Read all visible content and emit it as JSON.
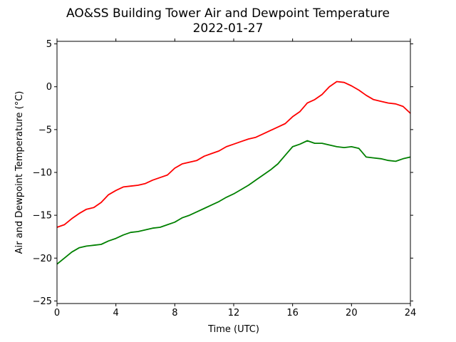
{
  "chart_data": {
    "type": "line",
    "title": "AO&SS Building Tower Air and Dewpoint Temperature",
    "subtitle": "2022-01-27",
    "xlabel": "Time (UTC)",
    "ylabel": "Air and Dewpoint Temperature (°C)",
    "xlim": [
      0,
      24
    ],
    "ylim": [
      -25.3,
      5.3
    ],
    "xticks": [
      0,
      4,
      8,
      12,
      16,
      20,
      24
    ],
    "yticks": [
      -25,
      -20,
      -15,
      -10,
      -5,
      0,
      5
    ],
    "grid": false,
    "legend": "none",
    "series": [
      {
        "color": "#ff0000",
        "x": [
          0,
          0.5,
          1,
          1.5,
          2,
          2.5,
          3,
          3.5,
          4,
          4.5,
          5,
          5.5,
          6,
          6.5,
          7,
          7.5,
          8,
          8.5,
          9,
          9.5,
          10,
          10.5,
          11,
          11.5,
          12,
          12.5,
          13,
          13.5,
          14,
          14.5,
          15,
          15.5,
          16,
          16.5,
          17,
          17.5,
          18,
          18.5,
          19,
          19.5,
          20,
          20.5,
          21,
          21.5,
          22,
          22.5,
          23,
          23.5,
          24
        ],
        "y": [
          -16.4,
          -16.1,
          -15.4,
          -14.8,
          -14.3,
          -14.1,
          -13.5,
          -12.6,
          -12.1,
          -11.7,
          -11.6,
          -11.5,
          -11.3,
          -10.9,
          -10.6,
          -10.3,
          -9.5,
          -9.0,
          -8.8,
          -8.6,
          -8.1,
          -7.8,
          -7.5,
          -7.0,
          -6.7,
          -6.4,
          -6.1,
          -5.9,
          -5.5,
          -5.1,
          -4.7,
          -4.3,
          -3.5,
          -2.9,
          -1.9,
          -1.5,
          -0.9,
          0.0,
          0.6,
          0.5,
          0.1,
          -0.4,
          -1.0,
          -1.5,
          -1.7,
          -1.9,
          -2.0,
          -2.3,
          -3.1
        ]
      },
      {
        "color": "#008000",
        "x": [
          0,
          0.5,
          1,
          1.5,
          2,
          2.5,
          3,
          3.5,
          4,
          4.5,
          5,
          5.5,
          6,
          6.5,
          7,
          7.5,
          8,
          8.5,
          9,
          9.5,
          10,
          10.5,
          11,
          11.5,
          12,
          12.5,
          13,
          13.5,
          14,
          14.5,
          15,
          15.5,
          16,
          16.5,
          17,
          17.5,
          18,
          18.5,
          19,
          19.5,
          20,
          20.5,
          21,
          21.5,
          22,
          22.5,
          23,
          23.5,
          24
        ],
        "y": [
          -20.7,
          -20.0,
          -19.3,
          -18.8,
          -18.6,
          -18.5,
          -18.4,
          -18.0,
          -17.7,
          -17.3,
          -17.0,
          -16.9,
          -16.7,
          -16.5,
          -16.4,
          -16.1,
          -15.8,
          -15.3,
          -15.0,
          -14.6,
          -14.2,
          -13.8,
          -13.4,
          -12.9,
          -12.5,
          -12.0,
          -11.5,
          -10.9,
          -10.3,
          -9.7,
          -9.0,
          -8.0,
          -7.0,
          -6.7,
          -6.3,
          -6.6,
          -6.6,
          -6.8,
          -7.0,
          -7.1,
          -7.0,
          -7.2,
          -8.2,
          -8.3,
          -8.4,
          -8.6,
          -8.7,
          -8.4,
          -8.2
        ]
      }
    ]
  }
}
